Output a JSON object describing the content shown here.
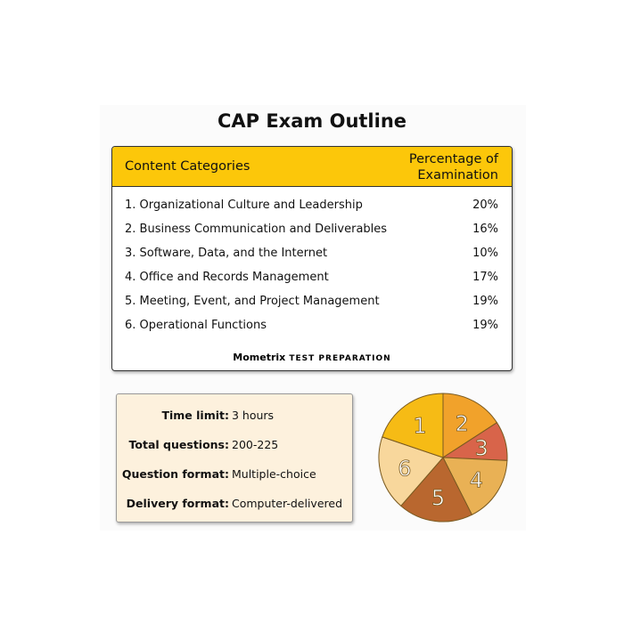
{
  "title": "CAP Exam Outline",
  "table": {
    "headers": [
      "Content Categories",
      "Percentage of",
      "Examination"
    ],
    "rows": [
      {
        "label": "1. Organizational Culture and Leadership",
        "pct": "20%"
      },
      {
        "label": "2. Business Communication and Deliverables",
        "pct": "16%"
      },
      {
        "label": "3. Software, Data, and the Internet",
        "pct": "10%"
      },
      {
        "label": "4. Office and Records Management",
        "pct": "17%"
      },
      {
        "label": "5. Meeting, Event, and Project Management",
        "pct": "19%"
      },
      {
        "label": "6. Operational Functions",
        "pct": "19%"
      }
    ],
    "brand": "Mometrix",
    "brand_suffix": "TEST PREPARATION"
  },
  "info": [
    {
      "key": "Time limit:",
      "value": "3 hours"
    },
    {
      "key": "Total questions:",
      "value": "200-225"
    },
    {
      "key": "Question format:",
      "value": "Multiple-choice"
    },
    {
      "key": "Delivery format:",
      "value": "Computer-delivered"
    }
  ],
  "chart_data": {
    "type": "pie",
    "categories": [
      "1",
      "2",
      "3",
      "4",
      "5",
      "6"
    ],
    "values": [
      20,
      16,
      10,
      17,
      19,
      19
    ],
    "colors": [
      "#f6bb15",
      "#f1a22b",
      "#d8644a",
      "#e9b155",
      "#b9672f",
      "#f8d79c"
    ],
    "header_color": "#fcc70a",
    "info_bg": "#fdf1dd"
  }
}
